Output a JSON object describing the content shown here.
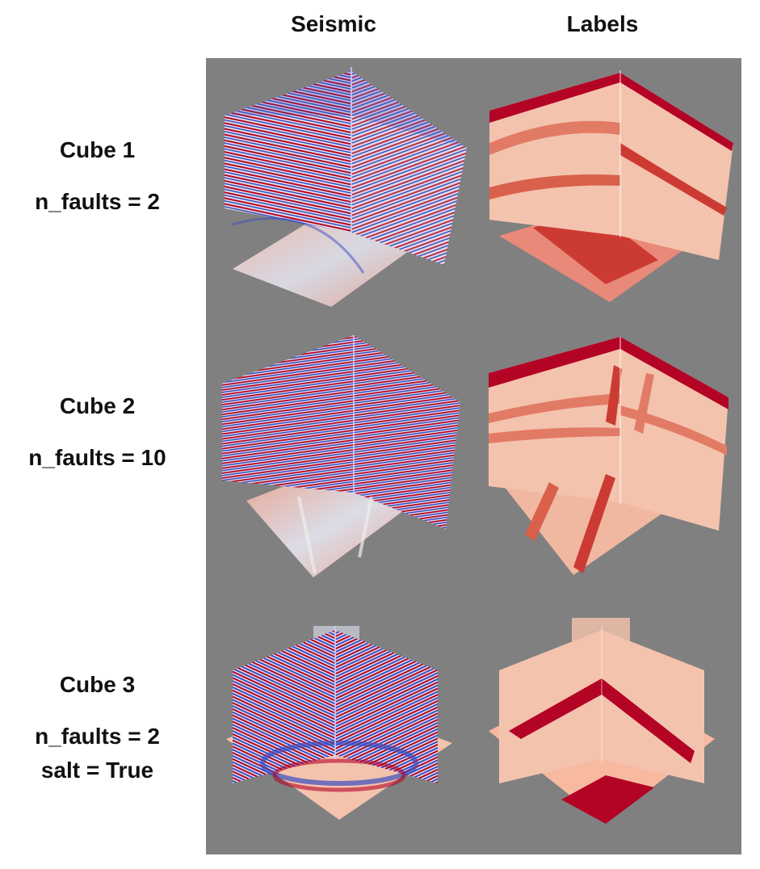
{
  "columns": {
    "seismic": "Seismic",
    "labels": "Labels"
  },
  "rows": [
    {
      "title": "Cube 1",
      "params": [
        "n_faults = 2"
      ]
    },
    {
      "title": "Cube 2",
      "params": [
        "n_faults = 10"
      ]
    },
    {
      "title": "Cube 3",
      "params": [
        "n_faults = 2",
        "salt = True"
      ]
    }
  ],
  "colors": {
    "panel_bg": "#808080",
    "seismic_red": "#b40426",
    "seismic_blue": "#3b4cc0",
    "seismic_white": "#dddddd",
    "label_dark": "#b40426",
    "label_mid": "#d9604b",
    "label_light": "#f4c3ad"
  }
}
